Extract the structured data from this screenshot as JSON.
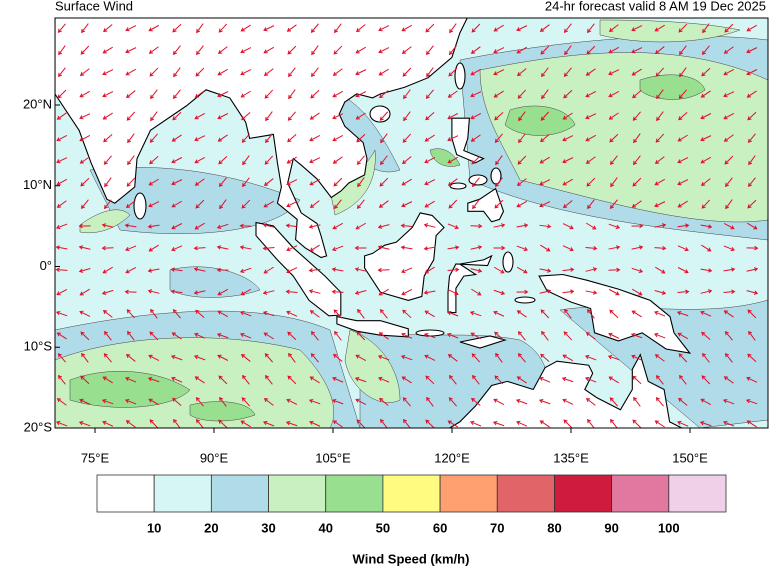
{
  "header": {
    "title": "Surface Wind",
    "valid": "24-hr forecast valid 8 AM 19 Dec 2025"
  },
  "map": {
    "lat_labels": [
      "20°N",
      "10°N",
      "0°",
      "10°S",
      "20°S"
    ],
    "lon_labels": [
      "75°E",
      "90°E",
      "105°E",
      "120°E",
      "135°E",
      "150°E"
    ]
  },
  "legend": {
    "title": "Wind Speed (km/h)",
    "levels": [
      10,
      20,
      30,
      40,
      50,
      60,
      70,
      80,
      90,
      100
    ],
    "colors": [
      "#ffffff",
      "#d6f5f5",
      "#b0dcea",
      "#c8f0c0",
      "#98e090",
      "#fffa80",
      "#ffa070",
      "#e06468",
      "#d01c3c",
      "#e078a0",
      "#f0d0e8"
    ]
  }
}
